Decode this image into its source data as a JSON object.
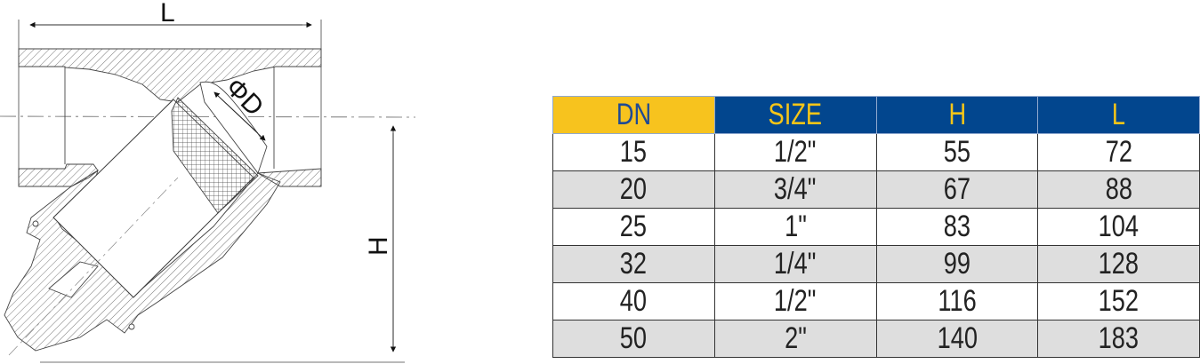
{
  "drawing": {
    "dimension_labels": {
      "length": "L",
      "height": "H",
      "diameter": "ΦD"
    }
  },
  "table": {
    "colors": {
      "dn_header_bg": "#F7C31E",
      "header_bg": "#02468E",
      "header_text": "#F5C518",
      "dn_header_text": "#1E4A94",
      "row_alt_bg": "#DEDEDE"
    },
    "headers": [
      "DN",
      "SIZE",
      "H",
      "L"
    ],
    "rows": [
      [
        "15",
        "1/2\"",
        "55",
        "72"
      ],
      [
        "20",
        "3/4\"",
        "67",
        "88"
      ],
      [
        "25",
        "1\"",
        "83",
        "104"
      ],
      [
        "32",
        "1/4\"",
        "99",
        "128"
      ],
      [
        "40",
        "1/2\"",
        "116",
        "152"
      ],
      [
        "50",
        "2\"",
        "140",
        "183"
      ]
    ]
  }
}
